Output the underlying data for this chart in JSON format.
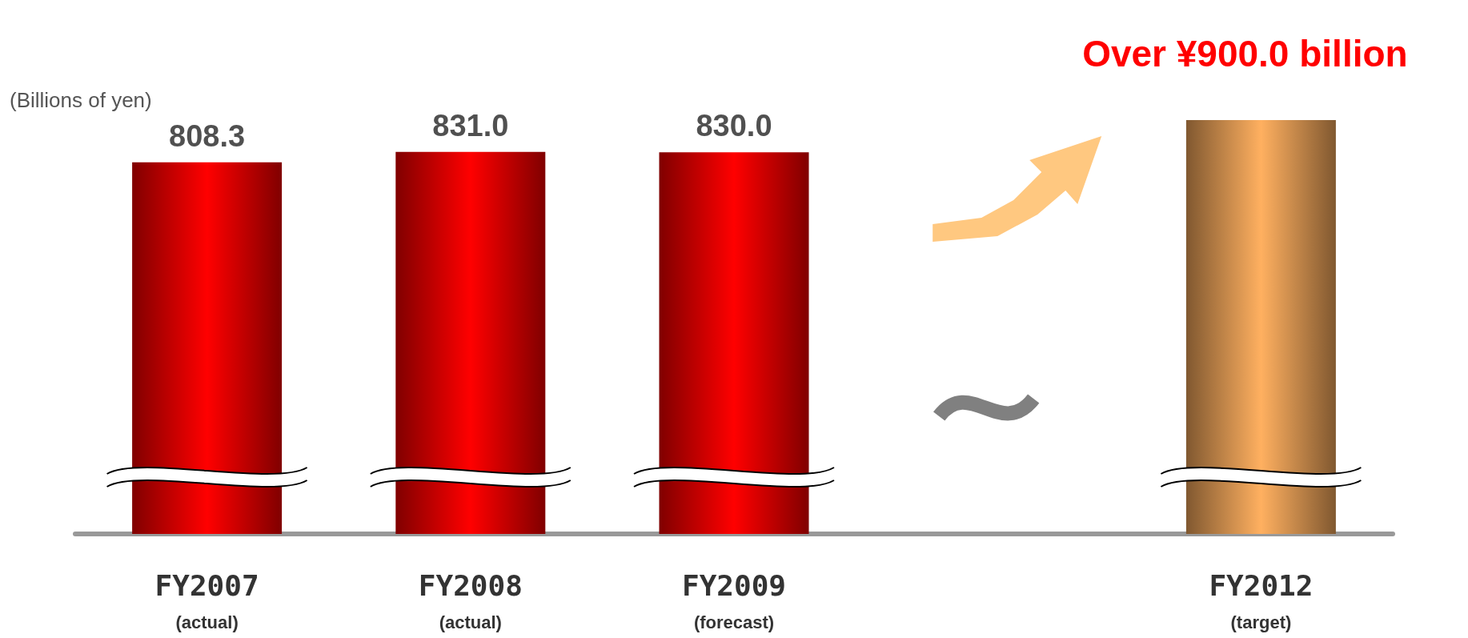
{
  "chart_data": {
    "type": "bar",
    "annotations": [
      "(Billions of yen)"
    ],
    "categories": [
      "FY2007\n(actual)",
      "FY2008\n(actual)",
      "FY2009\n(forecast)",
      null,
      "FY2012\n(target)"
    ],
    "values": [
      808.3,
      831.0,
      830.0,
      null,
      900
    ],
    "colors": [
      "#ff0000",
      "#ff0000",
      "#ff0000",
      "#ffffff",
      "#ffb060"
    ],
    "value_labels": [
      "808.3",
      "831.0",
      "830.0",
      null,
      "Over ¥900.0 billion"
    ],
    "tick_labels": "x",
    "grid": false
  }
}
